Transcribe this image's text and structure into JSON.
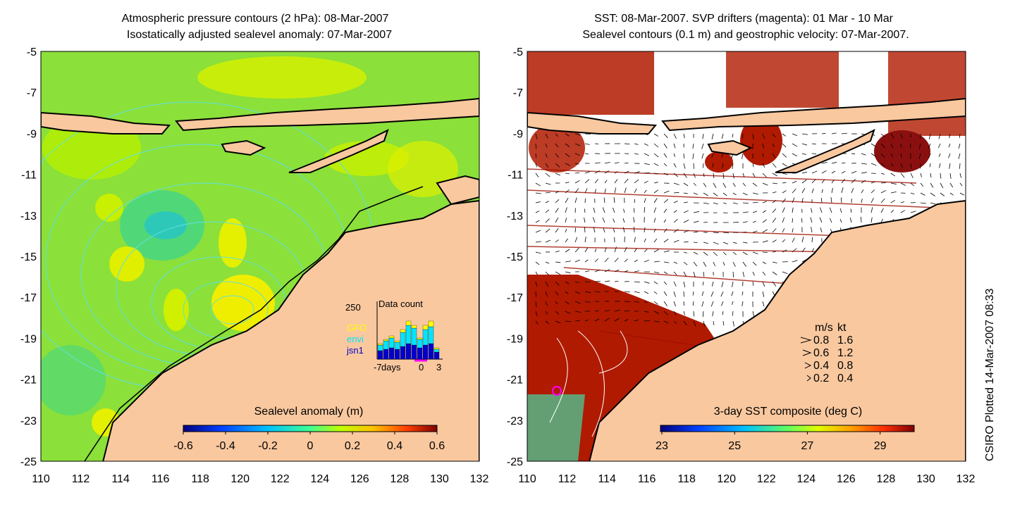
{
  "left_panel": {
    "title_line1": "Atmospheric pressure contours (2 hPa): 08-Mar-2007",
    "title_line2": "Isostatically adjusted sealevel anomaly: 07-Mar-2007",
    "colorbar": {
      "label": "Sealevel anomaly (m)",
      "ticks": [
        "-0.6",
        "-0.4",
        "-0.2",
        "0",
        "0.2",
        "0.4",
        "0.6"
      ]
    },
    "inset": {
      "title": "Data count",
      "ymax_label": "250",
      "legend": [
        {
          "name": "GFO",
          "color": "#ffff00"
        },
        {
          "name": "envi",
          "color": "#00e5ff"
        },
        {
          "name": "jsn1",
          "color": "#0000cc"
        }
      ],
      "xlabels": [
        "-7",
        "days",
        "0",
        "3"
      ]
    }
  },
  "right_panel": {
    "title_line1": "SST: 08-Mar-2007. SVP drifters (magenta): 01 Mar - 10 Mar",
    "title_line2": "Sealevel contours (0.1 m) and geostrophic velocity: 07-Mar-2007.",
    "colorbar": {
      "label": "3-day SST composite (deg C)",
      "ticks": [
        "23",
        "25",
        "27",
        "29"
      ]
    },
    "speed_legend": {
      "header_ms": "m/s",
      "header_kt": "kt",
      "rows": [
        {
          "ms": "0.8",
          "kt": "1.6"
        },
        {
          "ms": "0.6",
          "kt": "1.2"
        },
        {
          "ms": "0.4",
          "kt": "0.8"
        },
        {
          "ms": "0.2",
          "kt": "0.4"
        }
      ]
    }
  },
  "axes": {
    "lat_ticks": [
      "-5",
      "-7",
      "-9",
      "-11",
      "-13",
      "-15",
      "-17",
      "-19",
      "-21",
      "-23",
      "-25"
    ],
    "lon_ticks": [
      "110",
      "112",
      "114",
      "116",
      "118",
      "120",
      "122",
      "124",
      "126",
      "128",
      "130",
      "132"
    ]
  },
  "stamp": "CSIRO Plotted 14-Mar-2007 08:33",
  "colors": {
    "land": "#f9c89f",
    "ocean_left": "#8be03a",
    "sst_warm": "#b01a00"
  }
}
